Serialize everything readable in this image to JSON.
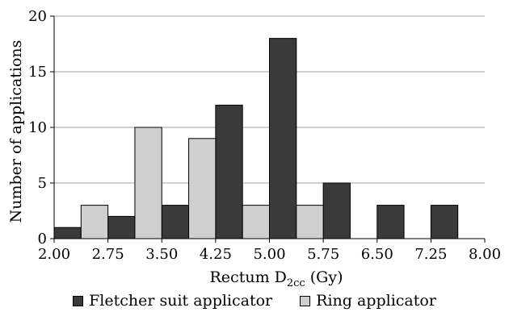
{
  "chart_data": {
    "type": "bar",
    "xlabel_main": "Rectum D",
    "xlabel_sub": "2cc",
    "xlabel_unit": " (Gy)",
    "ylabel": "Number of applications",
    "xlim": [
      2.0,
      8.0
    ],
    "ylim": [
      0,
      20
    ],
    "xticks": [
      "2.00",
      "2.75",
      "3.50",
      "4.25",
      "5.00",
      "5.75",
      "6.50",
      "7.25",
      "8.00"
    ],
    "yticks": [
      "0",
      "5",
      "10",
      "15",
      "20"
    ],
    "grid": "horizontal",
    "legend_position": "bottom",
    "bin_width": 0.375,
    "series": [
      {
        "name": "Fletcher suit applicator",
        "color": "#3a3a3a",
        "bins": [
          2.0,
          2.75,
          3.5,
          4.25,
          5.0,
          5.75,
          6.5,
          7.25
        ],
        "values": [
          1,
          2,
          3,
          12,
          18,
          5,
          3,
          3
        ]
      },
      {
        "name": "Ring applicator",
        "color": "#cfcfcf",
        "bins": [
          2.375,
          3.125,
          3.875,
          4.625,
          5.375
        ],
        "values": [
          3,
          10,
          9,
          3,
          3
        ]
      }
    ]
  }
}
